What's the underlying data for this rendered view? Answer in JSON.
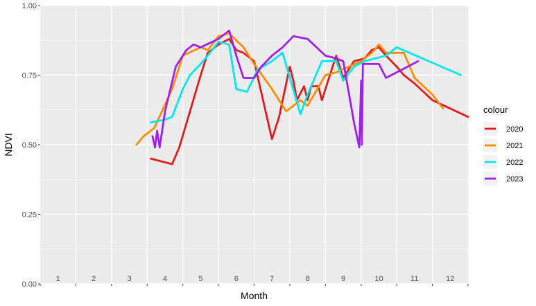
{
  "chart_data": {
    "type": "line",
    "xlabel": "Month",
    "ylabel": "NDVI",
    "xlim": [
      0.5,
      12.5
    ],
    "ylim": [
      0,
      1
    ],
    "x_ticks": [
      "1",
      "2",
      "3",
      "4",
      "5",
      "6",
      "7",
      "8",
      "9",
      "10",
      "11",
      "12"
    ],
    "y_ticks": [
      "0.00",
      "0.25",
      "0.50",
      "0.75",
      "1.00"
    ],
    "y_tick_values": [
      0,
      0.25,
      0.5,
      0.75,
      1.0
    ],
    "grid": true,
    "legend": {
      "title": "colour",
      "position": "right"
    },
    "series": [
      {
        "name": "2020",
        "color": "#e41a1c",
        "x": [
          3.6,
          4.2,
          4.4,
          4.7,
          5.0,
          5.2,
          5.5,
          5.8,
          6.0,
          6.2,
          6.5,
          7.0,
          7.2,
          7.5,
          7.6,
          7.7,
          7.9,
          8.0,
          8.1,
          8.3,
          8.4,
          8.6,
          8.8,
          9.0,
          9.3,
          9.6,
          9.8,
          10.0,
          10.2,
          10.5,
          10.7,
          11.0,
          11.5,
          12.5
        ],
        "y": [
          0.45,
          0.43,
          0.49,
          0.62,
          0.75,
          0.83,
          0.86,
          0.88,
          0.84,
          0.83,
          0.8,
          0.52,
          0.6,
          0.78,
          0.73,
          0.66,
          0.71,
          0.66,
          0.71,
          0.71,
          0.66,
          0.74,
          0.82,
          0.74,
          0.8,
          0.81,
          0.84,
          0.85,
          0.82,
          0.78,
          0.75,
          0.72,
          0.66,
          0.6
        ]
      },
      {
        "name": "2021",
        "color": "#ff8c00",
        "x": [
          3.2,
          3.4,
          3.7,
          4.2,
          4.5,
          5.0,
          5.2,
          5.5,
          5.8,
          6.2,
          6.5,
          7.0,
          7.4,
          7.8,
          8.0,
          8.5,
          8.8,
          9.5,
          9.8,
          10.0,
          10.2,
          10.7,
          11.0,
          11.5,
          11.8
        ],
        "y": [
          0.5,
          0.53,
          0.56,
          0.7,
          0.82,
          0.85,
          0.84,
          0.89,
          0.9,
          0.85,
          0.79,
          0.7,
          0.62,
          0.66,
          0.64,
          0.75,
          0.76,
          0.8,
          0.83,
          0.86,
          0.83,
          0.83,
          0.74,
          0.68,
          0.63
        ]
      },
      {
        "name": "2022",
        "color": "#00e5ee",
        "x": [
          3.6,
          4.0,
          4.2,
          4.5,
          4.7,
          5.0,
          5.2,
          5.5,
          5.8,
          6.0,
          6.3,
          6.6,
          7.0,
          7.3,
          7.8,
          8.0,
          8.4,
          8.8,
          9.0,
          9.3,
          9.6,
          10.2,
          10.5,
          12.3
        ],
        "y": [
          0.58,
          0.59,
          0.6,
          0.7,
          0.75,
          0.79,
          0.82,
          0.87,
          0.86,
          0.7,
          0.69,
          0.77,
          0.8,
          0.83,
          0.61,
          0.68,
          0.8,
          0.8,
          0.73,
          0.78,
          0.8,
          0.82,
          0.85,
          0.75
        ]
      },
      {
        "name": "2023",
        "color": "#a020f0",
        "x": [
          3.65,
          3.72,
          3.78,
          3.85,
          4.0,
          4.3,
          4.6,
          4.8,
          5.0,
          5.5,
          5.8,
          6.0,
          6.2,
          6.5,
          6.7,
          7.0,
          7.3,
          7.6,
          8.0,
          8.5,
          8.8,
          9.0,
          9.3,
          9.45,
          9.5,
          9.52,
          9.55,
          10.0,
          10.2,
          10.5,
          11.1
        ],
        "y": [
          0.53,
          0.49,
          0.55,
          0.49,
          0.62,
          0.78,
          0.84,
          0.86,
          0.85,
          0.88,
          0.91,
          0.82,
          0.74,
          0.74,
          0.78,
          0.82,
          0.85,
          0.89,
          0.88,
          0.82,
          0.81,
          0.8,
          0.58,
          0.49,
          0.73,
          0.5,
          0.79,
          0.79,
          0.74,
          0.76,
          0.8
        ]
      }
    ]
  }
}
